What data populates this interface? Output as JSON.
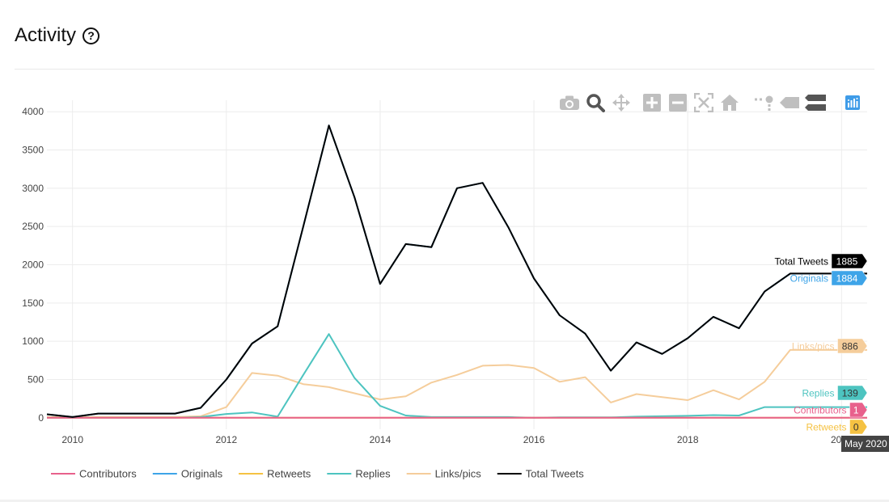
{
  "header": {
    "title": "Activity",
    "help_icon": "question-circle-icon"
  },
  "modebar": {
    "buttons": [
      {
        "name": "camera-icon",
        "label": "Download plot as a png"
      },
      {
        "name": "zoom-icon",
        "label": "Zoom"
      },
      {
        "name": "pan-icon",
        "label": "Pan"
      },
      {
        "name": "zoom-in-icon",
        "label": "Zoom in"
      },
      {
        "name": "zoom-out-icon",
        "label": "Zoom out"
      },
      {
        "name": "autoscale-icon",
        "label": "Autoscale"
      },
      {
        "name": "home-icon",
        "label": "Reset axes"
      },
      {
        "name": "spike-lines-icon",
        "label": "Toggle spike lines"
      },
      {
        "name": "hover-closest-icon",
        "label": "Show closest data on hover"
      },
      {
        "name": "hover-compare-icon",
        "label": "Compare data on hover"
      },
      {
        "name": "plotly-logo-icon",
        "label": "Produced with Plotly"
      }
    ]
  },
  "chart_data": {
    "type": "line",
    "x": [
      "2009-09",
      "2010-01",
      "2010-05",
      "2010-09",
      "2011-01",
      "2011-05",
      "2011-09",
      "2012-01",
      "2012-05",
      "2012-09",
      "2013-01",
      "2013-05",
      "2013-09",
      "2014-01",
      "2014-05",
      "2014-09",
      "2015-01",
      "2015-05",
      "2015-09",
      "2016-01",
      "2016-05",
      "2016-09",
      "2017-01",
      "2017-05",
      "2017-09",
      "2018-01",
      "2018-05",
      "2018-09",
      "2019-01",
      "2019-05",
      "2019-09",
      "2020-01",
      "2020-05"
    ],
    "series": [
      {
        "name": "Contributors",
        "color": "#e8618c",
        "values": [
          1,
          1,
          1,
          1,
          1,
          1,
          1,
          1,
          1,
          1,
          1,
          1,
          1,
          1,
          1,
          1,
          1,
          1,
          1,
          1,
          1,
          1,
          1,
          1,
          1,
          1,
          1,
          1,
          1,
          1,
          1,
          1,
          1
        ]
      },
      {
        "name": "Originals",
        "color": "#3ea4e8",
        "values": [
          45,
          10,
          55,
          55,
          55,
          55,
          130,
          500,
          970,
          1195,
          2500,
          3820,
          2880,
          1750,
          2270,
          2230,
          3000,
          3070,
          2490,
          1820,
          1340,
          1100,
          615,
          985,
          835,
          1040,
          1320,
          1170,
          1650,
          1884,
          1884,
          1884,
          1884
        ]
      },
      {
        "name": "Retweets",
        "color": "#f5c242",
        "values": [
          0,
          0,
          0,
          0,
          0,
          0,
          0,
          0,
          0,
          0,
          0,
          0,
          0,
          0,
          0,
          0,
          0,
          0,
          0,
          0,
          0,
          0,
          0,
          0,
          0,
          0,
          0,
          0,
          0,
          0,
          0,
          0,
          0
        ]
      },
      {
        "name": "Replies",
        "color": "#4dc4c0",
        "values": [
          0,
          0,
          0,
          0,
          0,
          0,
          10,
          50,
          70,
          15,
          560,
          1095,
          520,
          155,
          30,
          10,
          10,
          10,
          10,
          0,
          5,
          5,
          5,
          15,
          20,
          25,
          35,
          30,
          139,
          139,
          139,
          139,
          139
        ]
      },
      {
        "name": "Links/pics",
        "color": "#f5cd9b",
        "values": [
          10,
          5,
          10,
          10,
          10,
          10,
          20,
          140,
          585,
          550,
          440,
          400,
          320,
          240,
          280,
          460,
          560,
          680,
          690,
          650,
          470,
          530,
          200,
          310,
          270,
          230,
          360,
          240,
          470,
          886,
          886,
          886,
          886
        ]
      },
      {
        "name": "Total Tweets",
        "color": "#000000",
        "values": [
          45,
          10,
          55,
          55,
          55,
          55,
          130,
          500,
          970,
          1195,
          2500,
          3820,
          2880,
          1750,
          2270,
          2230,
          3000,
          3070,
          2490,
          1820,
          1340,
          1100,
          615,
          985,
          835,
          1040,
          1320,
          1170,
          1650,
          1885,
          1885,
          1885,
          1885
        ]
      }
    ],
    "xlim": [
      "2009-09",
      "2020-05"
    ],
    "ylim": [
      -150,
      4150
    ],
    "yticks": [
      0,
      500,
      1000,
      1500,
      2000,
      2500,
      3000,
      3500,
      4000
    ],
    "xticks": [
      {
        "date": "2010-01",
        "label": "2010"
      },
      {
        "date": "2012-01",
        "label": "2012"
      },
      {
        "date": "2014-01",
        "label": "2014"
      },
      {
        "date": "2016-01",
        "label": "2016"
      },
      {
        "date": "2018-01",
        "label": "2018"
      },
      {
        "date": "2020-01",
        "label": "2020"
      }
    ],
    "grid": true,
    "legend_position": "bottom-left",
    "hover": {
      "date_label": "May 2020",
      "items": [
        {
          "series": "Total Tweets",
          "value": "1885",
          "label_color": "#000000",
          "box_color": "#000000",
          "text_color": "#ffffff"
        },
        {
          "series": "Originals",
          "value": "1884",
          "label_color": "#3ea4e8",
          "box_color": "#3ea4e8",
          "text_color": "#ffffff"
        },
        {
          "series": "Links/pics",
          "value": "886",
          "label_color": "#f5cd9b",
          "box_color": "#f5cd9b",
          "text_color": "#333333"
        },
        {
          "series": "Replies",
          "value": "139",
          "label_color": "#4dc4c0",
          "box_color": "#4dc4c0",
          "text_color": "#333333"
        },
        {
          "series": "Contributors",
          "value": "1",
          "label_color": "#e8618c",
          "box_color": "#e8618c",
          "text_color": "#ffffff"
        },
        {
          "series": "Retweets",
          "value": "0",
          "label_color": "#f5c242",
          "box_color": "#f5c242",
          "text_color": "#333333"
        }
      ]
    }
  }
}
